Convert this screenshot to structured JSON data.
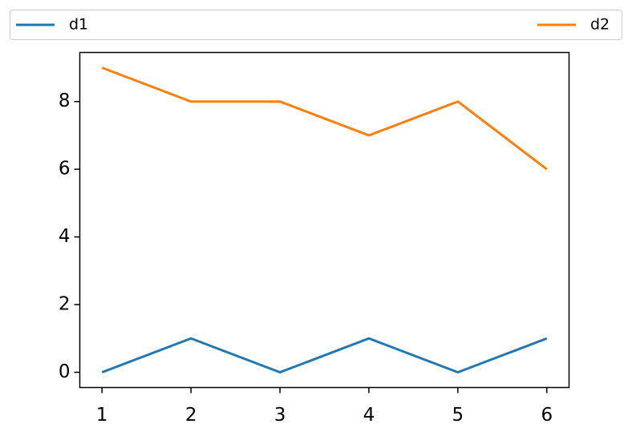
{
  "chart_data": {
    "type": "line",
    "x": [
      1,
      2,
      3,
      4,
      5,
      6
    ],
    "series": [
      {
        "name": "d1",
        "color": "#1f77b4",
        "values": [
          0,
          1,
          0,
          1,
          0,
          1
        ]
      },
      {
        "name": "d2",
        "color": "#ff7f0e",
        "values": [
          9,
          8,
          8,
          7,
          8,
          6
        ]
      }
    ],
    "xlim": [
      0.75,
      6.25
    ],
    "xticks": [
      1,
      2,
      3,
      4,
      5,
      6
    ],
    "ylim": [
      -0.45,
      9.45
    ],
    "yticks": [
      0,
      2,
      4,
      6,
      8
    ],
    "grid": false,
    "legend": "top"
  }
}
